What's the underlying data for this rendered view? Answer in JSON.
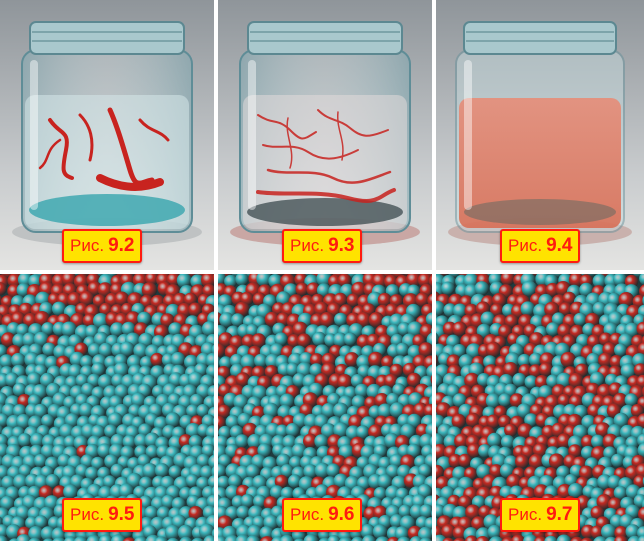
{
  "figures": [
    {
      "prefix": "Рис.",
      "number": "9.2"
    },
    {
      "prefix": "Рис.",
      "number": "9.3"
    },
    {
      "prefix": "Рис.",
      "number": "9.4"
    },
    {
      "prefix": "Рис.",
      "number": "9.5"
    },
    {
      "prefix": "Рис.",
      "number": "9.6"
    },
    {
      "prefix": "Рис.",
      "number": "9.7"
    }
  ],
  "colors": {
    "label_background": "#ffe300",
    "label_text": "#ff1b10",
    "dye": "#c8231f",
    "particle_red": "#c42a22",
    "particle_cyan": "#3bb7bd"
  },
  "mixing_levels": {
    "jars": [
      0.2,
      0.55,
      1.0
    ],
    "particles": [
      0.0,
      0.5,
      1.0
    ]
  }
}
